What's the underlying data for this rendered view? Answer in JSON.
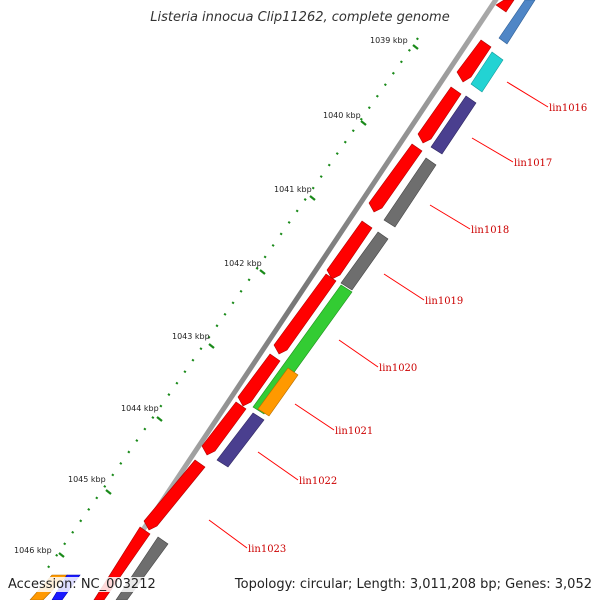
{
  "title": "Listeria innocua Clip11262, complete genome",
  "accession": "Accession: NC_003212",
  "summary": "Topology: circular; Length: 3,011,208 bp; Genes: 3,052",
  "ticks": [
    "1039 kbp",
    "1040 kbp",
    "1041 kbp",
    "1042 kbp",
    "1043 kbp",
    "1044 kbp",
    "1045 kbp",
    "1046 kbp"
  ],
  "genes": [
    "lin1016",
    "lin1017",
    "lin1018",
    "lin1019",
    "lin1020",
    "lin1021",
    "lin1022",
    "lin1023"
  ],
  "colors": {
    "backbone": "#8a8a8a",
    "forward": "#ff0000",
    "gray": "#6e6e6e",
    "green": "#33cc33",
    "orange": "#ff9900",
    "purple": "#4a3f8f",
    "cyan": "#22d3d3",
    "steel": "#4f86c6",
    "tick": "#1a8a1a",
    "label_line": "#ff0000"
  }
}
